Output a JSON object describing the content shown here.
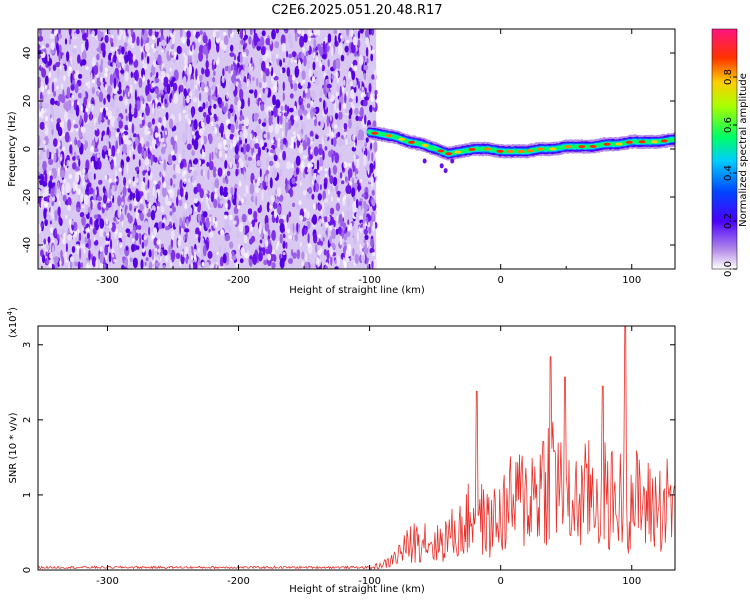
{
  "chart_data": [
    {
      "type": "heatmap",
      "title": "C2E6.2025.051.20.48.R17",
      "xlabel": "Height of straight line (km)",
      "ylabel": "Frequency (Hz)",
      "xlim": [
        -353,
        133
      ],
      "ylim": [
        -50,
        50
      ],
      "xticks": [
        "-300",
        "-200",
        "-100",
        "0",
        "100"
      ],
      "yticks": [
        "40",
        "20",
        "0",
        "-20",
        "-40"
      ],
      "noise_region_x": [
        -353,
        -95
      ],
      "ridge": {
        "x": [
          -100,
          -90,
          -80,
          -70,
          -60,
          -50,
          -40,
          -30,
          -20,
          -10,
          0,
          10,
          20,
          30,
          40,
          50,
          60,
          70,
          80,
          90,
          100,
          110,
          120,
          133
        ],
        "y": [
          7,
          6,
          5,
          3,
          2,
          0,
          -2,
          -1,
          0,
          0,
          -1,
          -1,
          -1,
          0,
          0,
          1,
          1,
          1,
          2,
          2,
          3,
          3,
          3,
          4
        ]
      },
      "colorbar": {
        "label": "Normalized spectral amplitude",
        "range": [
          0,
          1
        ],
        "ticks": [
          "0.0",
          "0.2",
          "0.4",
          "0.6",
          "0.8"
        ],
        "colors": [
          "#ffffff",
          "#8a2be2",
          "#0000ff",
          "#00ffff",
          "#00ff00",
          "#ffff00",
          "#ff8000",
          "#ff0000",
          "#ff1493"
        ]
      }
    },
    {
      "type": "line",
      "title": "",
      "xlabel": "Height of straight line (km)",
      "ylabel": "SNR (10 * v/v)",
      "scale_note": "(x10",
      "scale_exp": "4",
      "scale_close": ")",
      "xlim": [
        -353,
        133
      ],
      "ylim": [
        0,
        3.25
      ],
      "xticks": [
        "-300",
        "-200",
        "-100",
        "0",
        "100"
      ],
      "yticks": [
        "0",
        "1",
        "2",
        "3"
      ],
      "color": "#e8302a",
      "envelope": {
        "x": [
          -353,
          -100,
          -85,
          -75,
          -60,
          -50,
          -40,
          -30,
          -20,
          -10,
          0,
          10,
          20,
          30,
          40,
          50,
          60,
          70,
          80,
          90,
          100,
          110,
          120,
          133
        ],
        "y": [
          0.03,
          0.04,
          0.15,
          0.4,
          0.7,
          0.5,
          0.7,
          0.8,
          1.2,
          0.9,
          1.1,
          1.4,
          1.5,
          1.7,
          2.2,
          1.3,
          1.4,
          1.6,
          1.5,
          1.4,
          1.5,
          1.3,
          1.3,
          1.4
        ]
      },
      "peaks": [
        {
          "x": -18,
          "y": 2.38
        },
        {
          "x": 38,
          "y": 2.84
        },
        {
          "x": 95,
          "y": 3.25
        },
        {
          "x": 49,
          "y": 2.57
        },
        {
          "x": 78,
          "y": 2.45
        }
      ]
    }
  ]
}
